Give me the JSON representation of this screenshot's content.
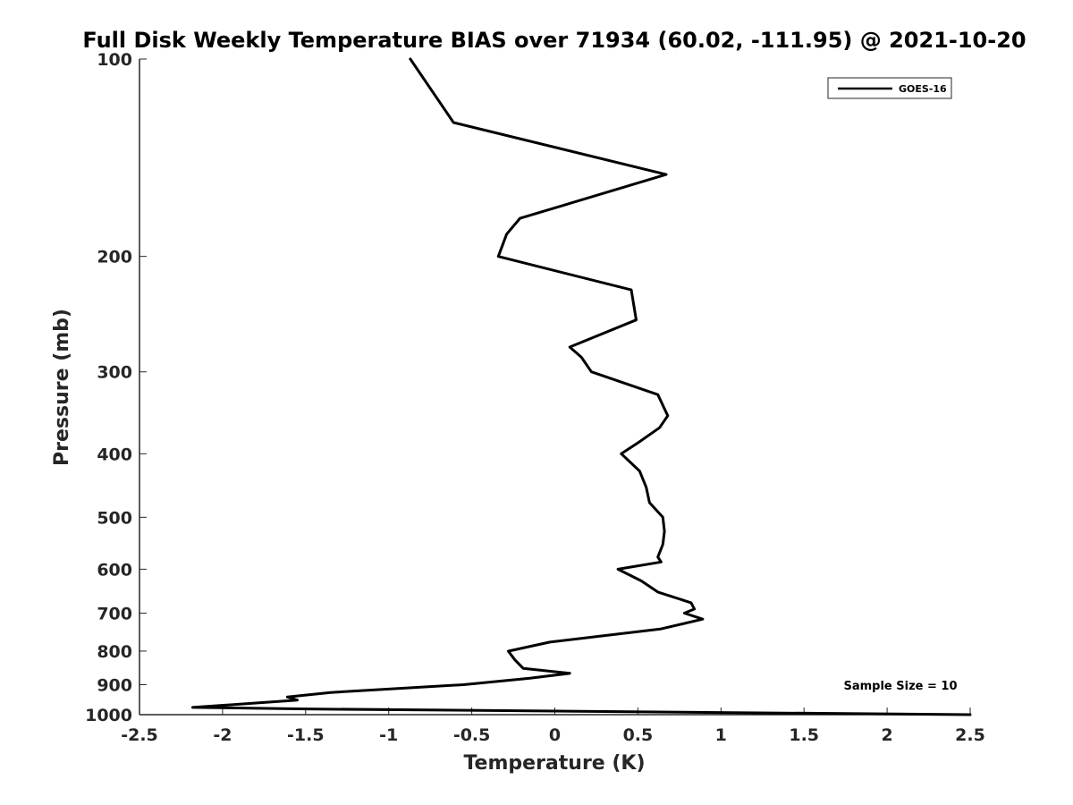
{
  "chart_data": {
    "type": "line",
    "title": "Full Disk Weekly Temperature BIAS over 71934 (60.02, -111.95) @ 2021-10-20",
    "xlabel": "Temperature (K)",
    "ylabel": "Pressure (mb)",
    "xlim": [
      -2.5,
      2.5
    ],
    "ylim": [
      100,
      1000
    ],
    "y_scale": "log",
    "y_reversed": true,
    "grid": false,
    "legend_position": "top-right",
    "x_ticks": [
      "-2.5",
      "-2",
      "-1.5",
      "-1",
      "-0.5",
      "0",
      "0.5",
      "1",
      "1.5",
      "2",
      "2.5"
    ],
    "y_ticks": [
      "100",
      "200",
      "300",
      "400",
      "500",
      "600",
      "700",
      "800",
      "900",
      "1000"
    ],
    "annotation": "Sample Size = 10",
    "series": [
      {
        "name": "GOES-16",
        "color": "#000000",
        "points": [
          {
            "t": -0.87,
            "p": 100
          },
          {
            "t": -0.61,
            "p": 125
          },
          {
            "t": 0.67,
            "p": 150
          },
          {
            "t": -0.21,
            "p": 175
          },
          {
            "t": -0.29,
            "p": 185
          },
          {
            "t": -0.34,
            "p": 200
          },
          {
            "t": 0.46,
            "p": 225
          },
          {
            "t": 0.49,
            "p": 250
          },
          {
            "t": 0.09,
            "p": 275
          },
          {
            "t": 0.16,
            "p": 285
          },
          {
            "t": 0.22,
            "p": 300
          },
          {
            "t": 0.62,
            "p": 325
          },
          {
            "t": 0.68,
            "p": 350
          },
          {
            "t": 0.63,
            "p": 365
          },
          {
            "t": 0.5,
            "p": 385
          },
          {
            "t": 0.4,
            "p": 400
          },
          {
            "t": 0.51,
            "p": 425
          },
          {
            "t": 0.55,
            "p": 450
          },
          {
            "t": 0.57,
            "p": 475
          },
          {
            "t": 0.65,
            "p": 500
          },
          {
            "t": 0.66,
            "p": 525
          },
          {
            "t": 0.65,
            "p": 550
          },
          {
            "t": 0.62,
            "p": 575
          },
          {
            "t": 0.64,
            "p": 585
          },
          {
            "t": 0.38,
            "p": 600
          },
          {
            "t": 0.52,
            "p": 625
          },
          {
            "t": 0.62,
            "p": 650
          },
          {
            "t": 0.82,
            "p": 675
          },
          {
            "t": 0.84,
            "p": 690
          },
          {
            "t": 0.78,
            "p": 700
          },
          {
            "t": 0.89,
            "p": 715
          },
          {
            "t": 0.64,
            "p": 740
          },
          {
            "t": -0.03,
            "p": 775
          },
          {
            "t": -0.28,
            "p": 800
          },
          {
            "t": -0.24,
            "p": 825
          },
          {
            "t": -0.19,
            "p": 850
          },
          {
            "t": 0.09,
            "p": 865
          },
          {
            "t": -0.15,
            "p": 880
          },
          {
            "t": -0.55,
            "p": 900
          },
          {
            "t": -1.35,
            "p": 925
          },
          {
            "t": -1.61,
            "p": 940
          },
          {
            "t": -1.55,
            "p": 950
          },
          {
            "t": -2.18,
            "p": 975
          },
          {
            "t": -1.5,
            "p": 980
          },
          {
            "t": 2.5,
            "p": 1000
          }
        ]
      }
    ]
  }
}
